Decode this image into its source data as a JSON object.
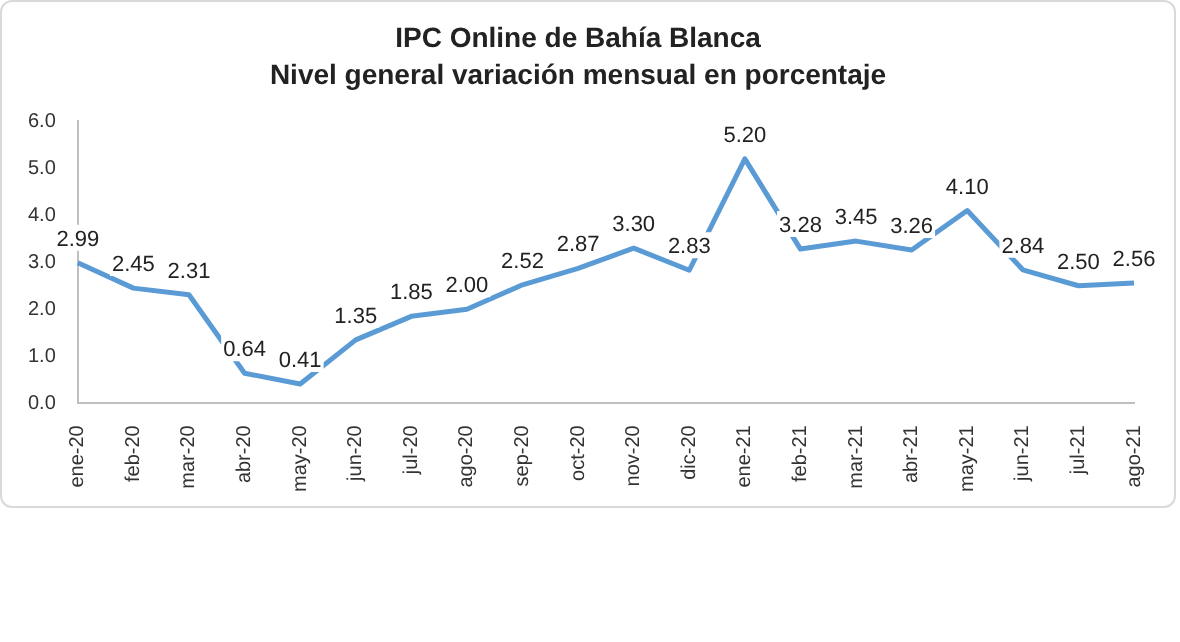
{
  "chart_data": {
    "type": "line",
    "title": "IPC Online de Bahía Blanca",
    "subtitle": "Nivel general variación mensual en porcentaje",
    "categories": [
      "ene-20",
      "feb-20",
      "mar-20",
      "abr-20",
      "may-20",
      "jun-20",
      "jul-20",
      "ago-20",
      "sep-20",
      "oct-20",
      "nov-20",
      "dic-20",
      "ene-21",
      "feb-21",
      "mar-21",
      "abr-21",
      "may-21",
      "jun-21",
      "jul-21",
      "ago-21"
    ],
    "series": [
      {
        "color": "#5b9bd5",
        "values": [
          2.99,
          2.45,
          2.31,
          0.64,
          0.41,
          1.35,
          1.85,
          2.0,
          2.52,
          2.87,
          3.3,
          2.83,
          5.2,
          3.28,
          3.45,
          3.26,
          4.1,
          2.84,
          2.5,
          2.56
        ],
        "value_labels": [
          "2.99",
          "2.45",
          "2.31",
          "0.64",
          "0.41",
          "1.35",
          "1.85",
          "2.00",
          "2.52",
          "2.87",
          "3.30",
          "2.83",
          "5.20",
          "3.28",
          "3.45",
          "3.26",
          "4.10",
          "2.84",
          "2.50",
          "2.56"
        ]
      }
    ],
    "ylim": [
      0,
      6
    ],
    "yticks": [
      {
        "value": 0,
        "label": "0.0"
      },
      {
        "value": 1,
        "label": "1.0"
      },
      {
        "value": 2,
        "label": "2.0"
      },
      {
        "value": 3,
        "label": "3.0"
      },
      {
        "value": 4,
        "label": "4.0"
      },
      {
        "value": 5,
        "label": "5.0"
      },
      {
        "value": 6,
        "label": "6.0"
      }
    ],
    "grid": false,
    "legend": false,
    "marker": "none",
    "line_style": "solid"
  }
}
